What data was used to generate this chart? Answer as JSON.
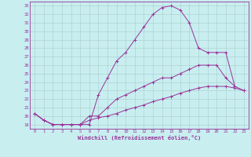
{
  "xlabel": "Windchill (Refroidissement éolien,°C)",
  "bg_color": "#c8eef0",
  "line_color": "#993399",
  "grid_color": "#aacccc",
  "xlim": [
    -0.5,
    23.5
  ],
  "ylim": [
    18.5,
    33.5
  ],
  "yticks": [
    19,
    20,
    21,
    22,
    23,
    24,
    25,
    26,
    27,
    28,
    29,
    30,
    31,
    32,
    33
  ],
  "xticks": [
    0,
    1,
    2,
    3,
    4,
    5,
    6,
    7,
    8,
    9,
    10,
    11,
    12,
    13,
    14,
    15,
    16,
    17,
    18,
    19,
    20,
    21,
    22,
    23
  ],
  "curve1_x": [
    0,
    1,
    2,
    3,
    4,
    5,
    6,
    7,
    8,
    9,
    10,
    11,
    12,
    13,
    14,
    15,
    16,
    17,
    18,
    19,
    20,
    21,
    22
  ],
  "curve1_y": [
    20.3,
    19.5,
    19.0,
    19.0,
    19.0,
    19.0,
    19.0,
    22.5,
    24.5,
    26.5,
    27.5,
    29.0,
    30.5,
    32.0,
    32.8,
    33.0,
    32.5,
    31.0,
    28.0,
    27.5,
    27.5,
    27.5,
    23.5
  ],
  "curve2_x": [
    0,
    1,
    2,
    3,
    4,
    5,
    6,
    7,
    8,
    9,
    10,
    11,
    12,
    13,
    14,
    15,
    16,
    17,
    18,
    19,
    20,
    21,
    22,
    23
  ],
  "curve2_y": [
    20.3,
    19.5,
    19.0,
    19.0,
    19.0,
    19.0,
    20.0,
    20.0,
    21.0,
    22.0,
    22.5,
    23.0,
    23.5,
    24.0,
    24.5,
    24.5,
    25.0,
    25.5,
    26.0,
    26.0,
    26.0,
    24.5,
    23.5,
    23.0
  ],
  "curve3_x": [
    0,
    1,
    2,
    3,
    4,
    5,
    6,
    7,
    8,
    9,
    10,
    11,
    12,
    13,
    14,
    15,
    16,
    17,
    18,
    19,
    20,
    21,
    22,
    23
  ],
  "curve3_y": [
    20.3,
    19.5,
    19.0,
    19.0,
    19.0,
    19.0,
    19.5,
    19.8,
    20.0,
    20.3,
    20.7,
    21.0,
    21.3,
    21.7,
    22.0,
    22.3,
    22.7,
    23.0,
    23.3,
    23.5,
    23.5,
    23.5,
    23.3,
    23.0
  ]
}
